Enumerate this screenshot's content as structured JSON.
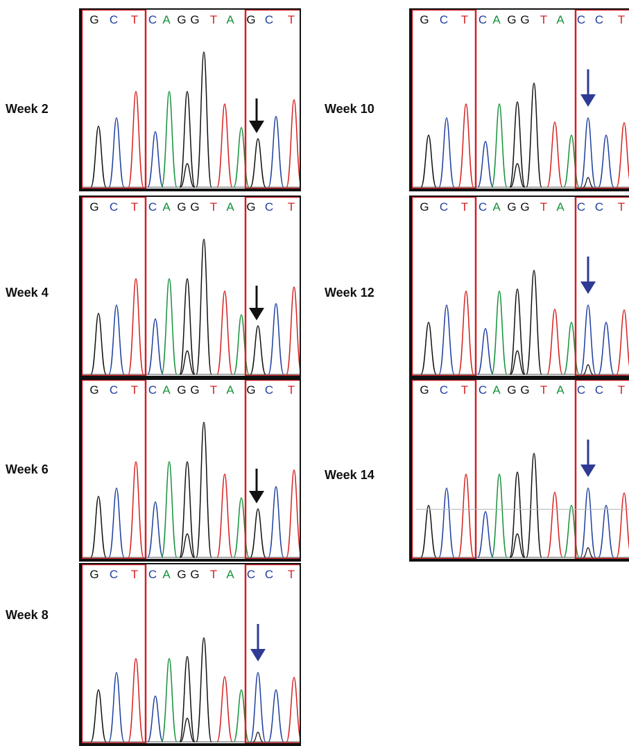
{
  "colors": {
    "G": "#111111",
    "C": "#1f3f9f",
    "A": "#14913a",
    "T": "#d62020",
    "box": "#d11f25",
    "arrow_wildtype": "#111111",
    "arrow_mutant": "#2e3a94"
  },
  "base_colors": {
    "G": "#111111",
    "C": "#1f3f9f",
    "A": "#14913a",
    "T": "#d62020"
  },
  "sequences": {
    "wildtype": "GCTCAGGTAGCT",
    "mutant": "GCTCAGGTACCT"
  },
  "panels": [
    {
      "label": "Week 2",
      "bases": [
        "G",
        "C",
        "T",
        "C",
        "A",
        "G",
        "G",
        "T",
        "A",
        "G",
        "C",
        "T"
      ],
      "arrow": "black",
      "clip_right": false
    },
    {
      "label": "Week 4",
      "bases": [
        "G",
        "C",
        "T",
        "C",
        "A",
        "G",
        "G",
        "T",
        "A",
        "G",
        "C",
        "T"
      ],
      "arrow": "black",
      "clip_right": false
    },
    {
      "label": "Week 6",
      "bases": [
        "G",
        "C",
        "T",
        "C",
        "A",
        "G",
        "G",
        "T",
        "A",
        "G",
        "C",
        "T"
      ],
      "arrow": "black",
      "clip_right": false
    },
    {
      "label": "Week 8",
      "bases": [
        "G",
        "C",
        "T",
        "C",
        "A",
        "G",
        "G",
        "T",
        "A",
        "C",
        "C",
        "T"
      ],
      "arrow": "blue",
      "clip_right": false
    },
    {
      "label": "Week 10",
      "bases": [
        "G",
        "C",
        "T",
        "C",
        "A",
        "G",
        "G",
        "T",
        "A",
        "C",
        "C",
        "T"
      ],
      "arrow": "blue",
      "clip_right": true
    },
    {
      "label": "Week 12",
      "bases": [
        "G",
        "C",
        "T",
        "C",
        "A",
        "G",
        "G",
        "T",
        "A",
        "C",
        "C",
        "T"
      ],
      "arrow": "blue",
      "clip_right": true
    },
    {
      "label": "Week 14",
      "bases": [
        "G",
        "C",
        "T",
        "C",
        "A",
        "G",
        "G",
        "T",
        "A",
        "C",
        "C",
        "T"
      ],
      "arrow": "blue",
      "clip_right": true
    }
  ]
}
